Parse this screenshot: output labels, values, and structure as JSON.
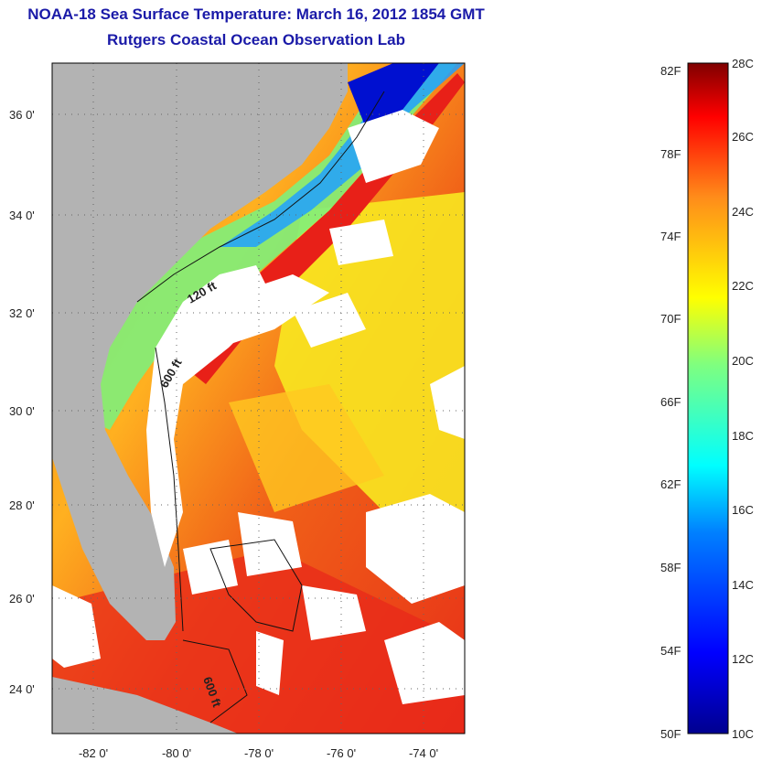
{
  "title": "NOAA-18 Sea Surface Temperature:  March 16, 2012 1854 GMT",
  "subtitle": "Rutgers Coastal Ocean Observation Lab",
  "map": {
    "lat_ticks": [
      "36 0'",
      "34 0'",
      "32 0'",
      "30 0'",
      "28 0'",
      "26 0'",
      "24 0'"
    ],
    "lon_ticks": [
      "-82 0'",
      "-80 0'",
      "-78 0'",
      "-76 0'",
      "-74 0'"
    ],
    "contour_labels": [
      "120 ft",
      "600 ft",
      "600 ft"
    ],
    "colors": {
      "land": "#b3b3b3",
      "cloud": "#ffffff"
    }
  },
  "colorbar": {
    "fahrenheit": [
      "82F",
      "78F",
      "74F",
      "70F",
      "66F",
      "62F",
      "58F",
      "54F",
      "50F"
    ],
    "celsius": [
      "28C",
      "26C",
      "24C",
      "22C",
      "20C",
      "18C",
      "16C",
      "14C",
      "12C",
      "10C"
    ],
    "colors": [
      "#7f0000",
      "#ff0000",
      "#ff8c1a",
      "#ffff00",
      "#7fff7f",
      "#00ffff",
      "#0080ff",
      "#0000ff",
      "#00008f"
    ]
  }
}
